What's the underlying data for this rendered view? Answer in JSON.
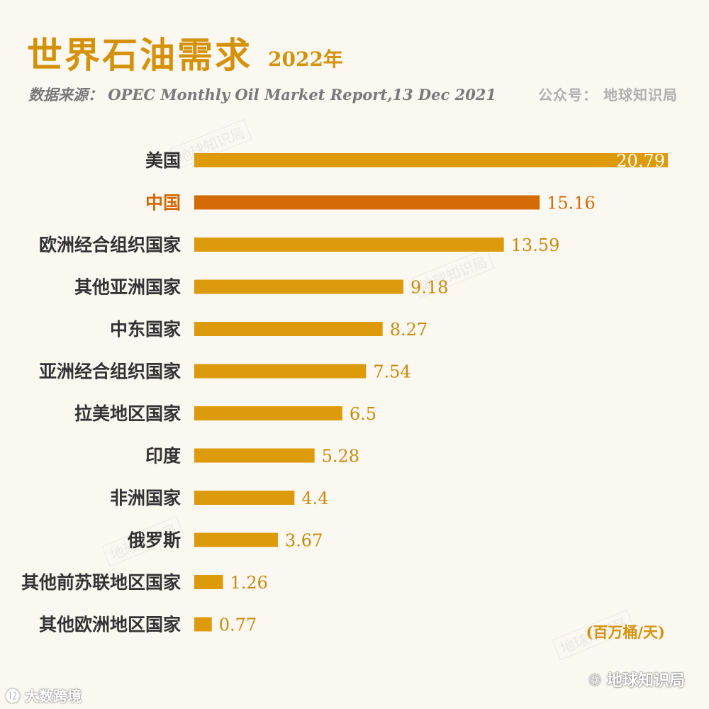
{
  "header": {
    "title": "世界石油需求",
    "year": "2022年",
    "source": "数据来源：  OPEC Monthly Oil Market Report,13 Dec 2021",
    "account": "公众号：  地球知识局"
  },
  "footer": {
    "unit": "(百万桶/天)",
    "left_mark": "⓬ 大数跨境",
    "right_mark": "❁ 地球知识局"
  },
  "watermark_text": "地球知识局",
  "colors": {
    "bar": "#dd9a0b",
    "highlight": "#d36a06",
    "label": "#333333",
    "value": "#c98a0c"
  },
  "chart_data": {
    "type": "bar",
    "orientation": "horizontal",
    "title": "世界石油需求",
    "subtitle": "2022年",
    "unit": "(百万桶/天)",
    "xlim": [
      0,
      20.79
    ],
    "highlight": "中国",
    "categories": [
      "美国",
      "中国",
      "欧洲经合组织国家",
      "其他亚洲国家",
      "中东国家",
      "亚洲经合组织国家",
      "拉美地区国家",
      "印度",
      "非洲国家",
      "俄罗斯",
      "其他前苏联地区国家",
      "其他欧洲地区国家"
    ],
    "values": [
      20.79,
      15.16,
      13.59,
      9.18,
      8.27,
      7.54,
      6.5,
      5.28,
      4.4,
      3.67,
      1.26,
      0.77
    ],
    "value_labels": [
      "20.79",
      "15.16",
      "13.59",
      "9.18",
      "8.27",
      "7.54",
      "6.5",
      "5.28",
      "4.4",
      "3.67",
      "1.26",
      "0.77"
    ]
  }
}
